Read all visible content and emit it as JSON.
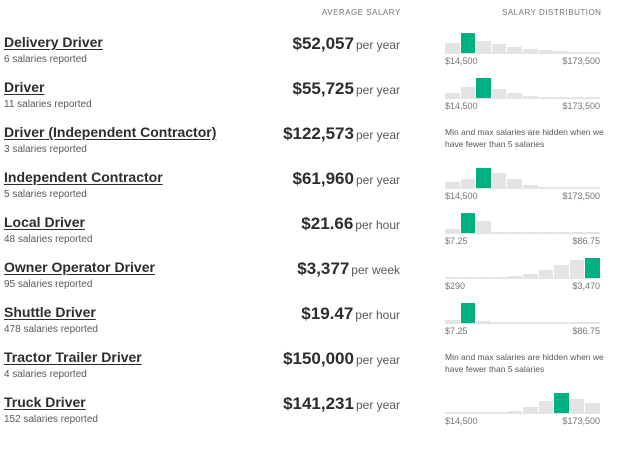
{
  "header": {
    "avg_label": "AVERAGE SALARY",
    "dist_label": "SALARY DISTRIBUTION"
  },
  "colors": {
    "bar_active": "#00b083",
    "bar_inactive": "#e4e4e4"
  },
  "rows": [
    {
      "title": "Delivery Driver",
      "count": "6 salaries reported",
      "amount": "$52,057",
      "period": "per year",
      "min": "$14,500",
      "max": "$173,500",
      "note": "",
      "bars": [
        0.5,
        1.0,
        0.6,
        0.45,
        0.3,
        0.2,
        0.15,
        0.1,
        0.06,
        0.05
      ],
      "active_index": 1
    },
    {
      "title": "Driver",
      "count": "11 salaries reported",
      "amount": "$55,725",
      "period": "per year",
      "min": "$14,500",
      "max": "$173,500",
      "note": "",
      "bars": [
        0.25,
        0.55,
        1.0,
        0.45,
        0.25,
        0.1,
        0.05,
        0.05,
        0.05,
        0.05
      ],
      "active_index": 2
    },
    {
      "title": "Driver (Independent Contractor)",
      "count": "3 salaries reported",
      "amount": "$122,573",
      "period": "per year",
      "min": "",
      "max": "",
      "note": "Min and max salaries are hidden when we have fewer than 5 salaries",
      "bars": [],
      "active_index": -1
    },
    {
      "title": "Independent Contractor",
      "count": "5 salaries reported",
      "amount": "$61,960",
      "period": "per year",
      "min": "$14,500",
      "max": "$173,500",
      "note": "",
      "bars": [
        0.3,
        0.45,
        1.0,
        0.75,
        0.45,
        0.15,
        0.05,
        0.05,
        0.05,
        0.05
      ],
      "active_index": 2
    },
    {
      "title": "Local Driver",
      "count": "48 salaries reported",
      "amount": "$21.66",
      "period": "per hour",
      "min": "$7.25",
      "max": "$86.75",
      "note": "",
      "bars": [
        0.2,
        1.0,
        0.6,
        0.05,
        0.05,
        0.05,
        0.05,
        0.05,
        0.05,
        0.05
      ],
      "active_index": 1
    },
    {
      "title": "Owner Operator Driver",
      "count": "95 salaries reported",
      "amount": "$3,377",
      "period": "per week",
      "min": "$290",
      "max": "$3,470",
      "note": "",
      "bars": [
        0.05,
        0.05,
        0.05,
        0.05,
        0.1,
        0.2,
        0.4,
        0.65,
        0.9,
        1.0
      ],
      "active_index": 9
    },
    {
      "title": "Shuttle Driver",
      "count": "478 salaries reported",
      "amount": "$19.47",
      "period": "per hour",
      "min": "$7.25",
      "max": "$86.75",
      "note": "",
      "bars": [
        0.15,
        1.0,
        0.1,
        0.05,
        0.05,
        0.05,
        0.05,
        0.05,
        0.05,
        0.05
      ],
      "active_index": 1
    },
    {
      "title": "Tractor Trailer Driver",
      "count": "4 salaries reported",
      "amount": "$150,000",
      "period": "per year",
      "min": "",
      "max": "",
      "note": "Min and max salaries are hidden when we have fewer than 5 salaries",
      "bars": [],
      "active_index": -1
    },
    {
      "title": "Truck Driver",
      "count": "152 salaries reported",
      "amount": "$141,231",
      "period": "per year",
      "min": "$14,500",
      "max": "$173,500",
      "note": "",
      "bars": [
        0.05,
        0.05,
        0.05,
        0.05,
        0.1,
        0.3,
        0.6,
        1.0,
        0.7,
        0.5
      ],
      "active_index": 7
    }
  ]
}
